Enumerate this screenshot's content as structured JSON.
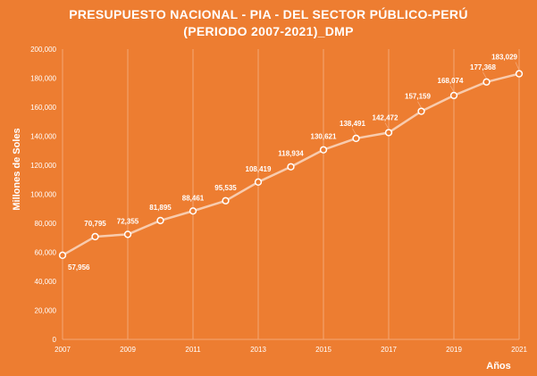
{
  "chart_data": {
    "type": "line",
    "title_line1": "PRESUPUESTO NACIONAL - PIA - DEL SECTOR PÚBLICO-PERÚ",
    "title_line2": "(PERIODO 2007-2021)_DMP",
    "xlabel": "Años",
    "ylabel": "Millones de Soles",
    "x": [
      2007,
      2008,
      2009,
      2010,
      2011,
      2012,
      2013,
      2014,
      2015,
      2016,
      2017,
      2018,
      2019,
      2020,
      2021
    ],
    "values": [
      57956,
      70795,
      72355,
      81895,
      88461,
      95535,
      108419,
      118934,
      130621,
      138491,
      142472,
      157159,
      168074,
      177368,
      183029
    ],
    "data_labels": [
      "57,956",
      "70,795",
      "72,355",
      "81,895",
      "88,461",
      "95,535",
      "108,419",
      "118,934",
      "130,621",
      "138,491",
      "142,472",
      "157,159",
      "168,074",
      "177,368",
      "183,029"
    ],
    "x_tick_labels": [
      "2007",
      "2009",
      "2011",
      "2013",
      "2015",
      "2017",
      "2019",
      "2021"
    ],
    "y_tick_labels": [
      "0",
      "20,000",
      "40,000",
      "60,000",
      "80,000",
      "100,000",
      "120,000",
      "140,000",
      "160,000",
      "180,000",
      "200,000"
    ],
    "ylim": [
      0,
      200000
    ],
    "xlim": [
      2007,
      2021
    ],
    "grid": "vertical",
    "legend": "none",
    "colors": {
      "background": "#ED7D31",
      "line": "#F8CBAD",
      "marker_fill": "#ED7D31",
      "marker_stroke": "#FFFFFF",
      "grid": "#F4A775",
      "text": "#FFFFFF"
    }
  }
}
